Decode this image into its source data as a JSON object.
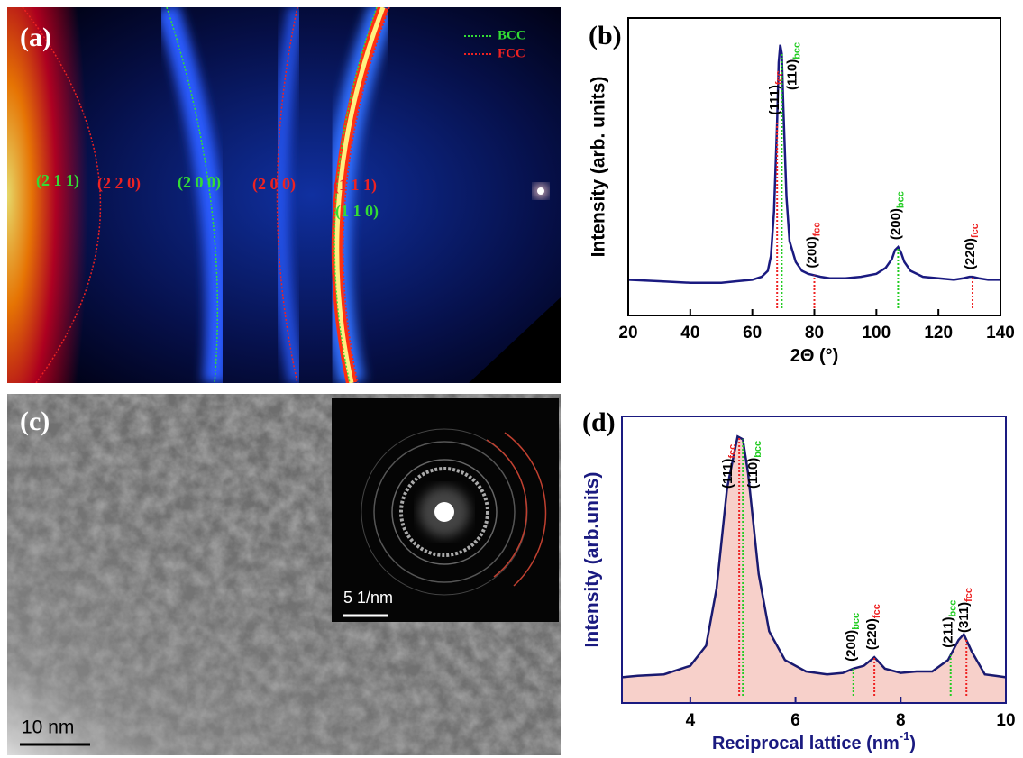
{
  "panels": {
    "a": {
      "label": "(a)",
      "legend": [
        {
          "name": "BCC",
          "color": "#33dd33"
        },
        {
          "name": "FCC",
          "color": "#ee2222"
        }
      ],
      "labels": [
        {
          "text": "(2 1 1)",
          "color": "#33dd33"
        },
        {
          "text": "(2 2 0)",
          "color": "#ee2222"
        },
        {
          "text": "(2 0 0)",
          "color": "#33dd33"
        },
        {
          "text": "(2 0 0)",
          "color": "#ee2222"
        },
        {
          "text": "(1 1 1)",
          "color": "#ee2222"
        },
        {
          "text": "(1 1 0)",
          "color": "#33dd33"
        }
      ]
    },
    "c": {
      "label": "(c)",
      "scale_bar": "10 nm",
      "inset_scale_bar": "5 1/nm"
    }
  },
  "chart_data": [
    {
      "type": "line",
      "panel_label": "(b)",
      "xlabel": "2Θ (°)",
      "ylabel": "Intensity (arb. units)",
      "color": "#1a1a80",
      "axis_color": "#000000",
      "x": [
        20,
        30,
        40,
        50,
        55,
        60,
        63,
        65,
        66,
        67,
        68,
        68.5,
        69,
        69.5,
        70,
        71,
        72,
        74,
        76,
        78,
        80,
        82,
        85,
        90,
        95,
        100,
        103,
        105,
        106,
        107,
        108,
        109,
        111,
        115,
        120,
        125,
        128,
        130,
        131,
        133,
        136,
        140
      ],
      "values": [
        12,
        11.5,
        11,
        11,
        11.5,
        12,
        13,
        15,
        20,
        35,
        65,
        85,
        91,
        88,
        70,
        40,
        25,
        18,
        15,
        14,
        13.5,
        13,
        12.5,
        12.5,
        13,
        14,
        16,
        19,
        22,
        23,
        21,
        18,
        15,
        13,
        12.5,
        12,
        12.5,
        13,
        13,
        12.5,
        12,
        12
      ],
      "xlim": [
        20,
        140
      ],
      "xticks": [
        20,
        40,
        60,
        80,
        100,
        120,
        140
      ],
      "ylim": [
        0,
        100
      ],
      "annotations": [
        {
          "text": "(111)",
          "sub": "fcc",
          "x": 68,
          "color": "#ee2222"
        },
        {
          "text": "(110)",
          "sub": "bcc",
          "x": 69.5,
          "color": "#22cc22"
        },
        {
          "text": "(200)",
          "sub": "fcc",
          "x": 80,
          "color": "#ee2222"
        },
        {
          "text": "(200)",
          "sub": "bcc",
          "x": 107,
          "color": "#22cc22"
        },
        {
          "text": "(220)",
          "sub": "fcc",
          "x": 131,
          "color": "#ee2222"
        }
      ]
    },
    {
      "type": "area",
      "panel_label": "(d)",
      "xlabel": "Reciprocal lattice (nm",
      "xlabel_superscript": "-1",
      "xlabel_suffix": ")",
      "ylabel": "Intensity (arb.units)",
      "color": "#1a1a70",
      "fill": "#f7d0ca",
      "axis_color": "#1a1a80",
      "x": [
        2.7,
        3,
        3.5,
        4,
        4.3,
        4.5,
        4.7,
        4.9,
        5.0,
        5.1,
        5.3,
        5.5,
        5.8,
        6.2,
        6.6,
        6.9,
        7.1,
        7.3,
        7.5,
        7.7,
        8.0,
        8.3,
        8.6,
        8.9,
        9.1,
        9.2,
        9.35,
        9.6,
        9.8,
        10
      ],
      "values": [
        9,
        9.5,
        10,
        13,
        20,
        40,
        75,
        93,
        92,
        80,
        45,
        25,
        15,
        11,
        10,
        10.5,
        12,
        13,
        16,
        12,
        10.5,
        11,
        11,
        15,
        22,
        24,
        18,
        10,
        9.5,
        9
      ],
      "xlim": [
        2.7,
        10
      ],
      "xticks": [
        4,
        6,
        8,
        10
      ],
      "ylim": [
        0,
        100
      ],
      "annotations": [
        {
          "text": "(111)",
          "sub": "fcc",
          "x": 4.93,
          "color": "#ee2222"
        },
        {
          "text": "(110)",
          "sub": "bcc",
          "x": 5.0,
          "color": "#22cc22"
        },
        {
          "text": "(200)",
          "sub": "bcc",
          "x": 7.1,
          "color": "#22cc22"
        },
        {
          "text": "(220)",
          "sub": "fcc",
          "x": 7.5,
          "color": "#ee2222"
        },
        {
          "text": "(211)",
          "sub": "bcc",
          "x": 8.95,
          "color": "#22cc22"
        },
        {
          "text": "(311)",
          "sub": "fcc",
          "x": 9.25,
          "color": "#ee2222"
        }
      ]
    }
  ]
}
